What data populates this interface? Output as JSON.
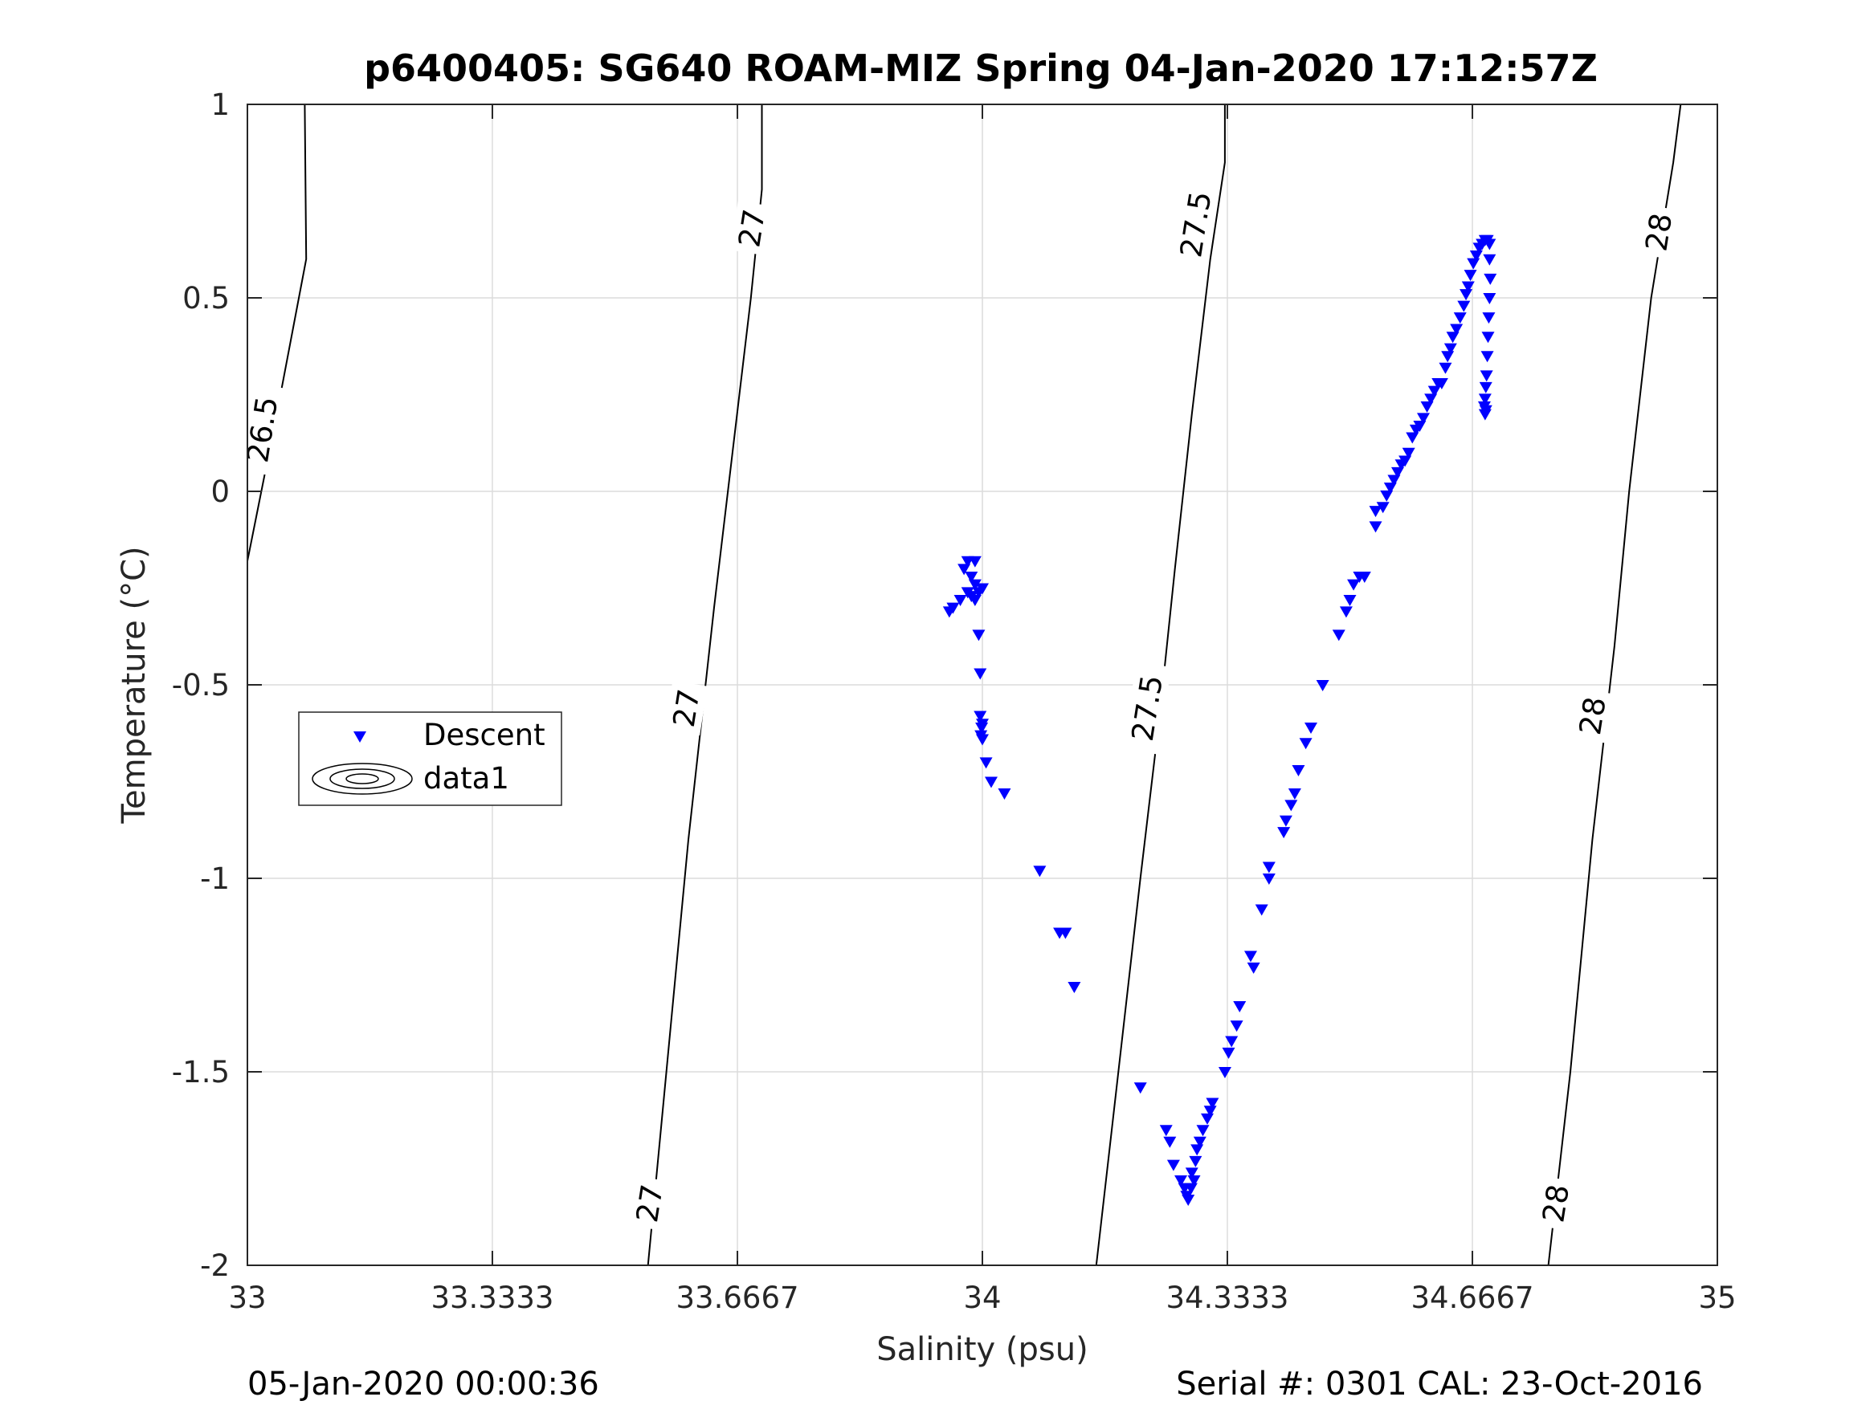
{
  "chart_data": {
    "type": "scatter",
    "title": "p6400405: SG640 ROAM-MIZ Spring 04-Jan-2020 17:12:57Z",
    "xlabel": "Salinity (psu)",
    "ylabel": "Temperature (°C)",
    "xlim": [
      33,
      35
    ],
    "ylim": [
      -2,
      1
    ],
    "xticks": [
      33,
      33.3333,
      33.6667,
      34,
      34.3333,
      34.6667,
      35
    ],
    "xtick_labels": [
      "33",
      "33.3333",
      "33.6667",
      "34",
      "34.3333",
      "34.6667",
      "35"
    ],
    "yticks": [
      -2,
      -1.5,
      -1,
      -0.5,
      0,
      0.5,
      1
    ],
    "ytick_labels": [
      "-2",
      "-1.5",
      "-1",
      "-0.5",
      "0",
      "0.5",
      "1"
    ],
    "grid": true,
    "legend_position": "left",
    "legend": [
      "Descent",
      "data1"
    ],
    "footer_left": "05-Jan-2020 00:00:36",
    "footer_right": "Serial #: 0301  CAL: 23-Oct-2016",
    "colors": {
      "descent": "#0000ff",
      "contour": "#000000",
      "grid": "#dcdcdc",
      "axis": "#262626"
    },
    "contours": [
      {
        "level": "26.5",
        "points": [
          [
            33.0,
            -0.18
          ],
          [
            33.04,
            0.2
          ],
          [
            33.08,
            0.6
          ],
          [
            33.078,
            1.0
          ]
        ]
      },
      {
        "level": "27",
        "points": [
          [
            33.545,
            -2.0
          ],
          [
            33.57,
            -1.5
          ],
          [
            33.6,
            -0.9
          ],
          [
            33.635,
            -0.3
          ],
          [
            33.66,
            0.1
          ],
          [
            33.685,
            0.5
          ],
          [
            33.7,
            0.78
          ],
          [
            33.7,
            1.0
          ]
        ]
      },
      {
        "level": "27.5",
        "points": [
          [
            34.155,
            -2.0
          ],
          [
            34.185,
            -1.5
          ],
          [
            34.215,
            -1.0
          ],
          [
            34.24,
            -0.6
          ],
          [
            34.262,
            -0.2
          ],
          [
            34.285,
            0.2
          ],
          [
            34.31,
            0.6
          ],
          [
            34.33,
            0.85
          ],
          [
            34.33,
            1.0
          ]
        ]
      },
      {
        "level": "28",
        "points": [
          [
            34.77,
            -2.0
          ],
          [
            34.8,
            -1.5
          ],
          [
            34.83,
            -0.9
          ],
          [
            34.86,
            -0.4
          ],
          [
            34.88,
            0.0
          ],
          [
            34.91,
            0.5
          ],
          [
            34.94,
            0.85
          ],
          [
            34.95,
            1.0
          ]
        ]
      }
    ],
    "contour_labels": [
      {
        "text": "26.5",
        "x": 33.02,
        "y": 0.16
      },
      {
        "text": "27",
        "x": 33.686,
        "y": 0.68
      },
      {
        "text": "27",
        "x": 33.597,
        "y": -0.56
      },
      {
        "text": "27",
        "x": 33.547,
        "y": -1.84
      },
      {
        "text": "27.5",
        "x": 34.29,
        "y": 0.69
      },
      {
        "text": "27.5",
        "x": 34.224,
        "y": -0.56
      },
      {
        "text": "28",
        "x": 34.92,
        "y": 0.67
      },
      {
        "text": "28",
        "x": 34.83,
        "y": -0.58
      },
      {
        "text": "28",
        "x": 34.78,
        "y": -1.84
      }
    ],
    "series": [
      {
        "name": "Descent",
        "marker": "triangle-down",
        "points": [
          [
            33.98,
            -0.18
          ],
          [
            33.99,
            -0.18
          ],
          [
            33.975,
            -0.2
          ],
          [
            33.985,
            -0.22
          ],
          [
            33.99,
            -0.24
          ],
          [
            33.98,
            -0.26
          ],
          [
            33.97,
            -0.28
          ],
          [
            33.99,
            -0.28
          ],
          [
            34.0,
            -0.25
          ],
          [
            33.995,
            -0.26
          ],
          [
            33.985,
            -0.27
          ],
          [
            33.96,
            -0.3
          ],
          [
            33.955,
            -0.31
          ],
          [
            33.995,
            -0.37
          ],
          [
            33.997,
            -0.47
          ],
          [
            33.997,
            -0.58
          ],
          [
            34.0,
            -0.6
          ],
          [
            33.999,
            -0.61
          ],
          [
            33.998,
            -0.63
          ],
          [
            34.0,
            -0.64
          ],
          [
            34.005,
            -0.7
          ],
          [
            34.012,
            -0.75
          ],
          [
            34.03,
            -0.78
          ],
          [
            34.078,
            -0.98
          ],
          [
            34.105,
            -1.14
          ],
          [
            34.113,
            -1.14
          ],
          [
            34.125,
            -1.28
          ],
          [
            34.215,
            -1.54
          ],
          [
            34.25,
            -1.65
          ],
          [
            34.255,
            -1.68
          ],
          [
            34.26,
            -1.74
          ],
          [
            34.27,
            -1.78
          ],
          [
            34.275,
            -1.8
          ],
          [
            34.278,
            -1.82
          ],
          [
            34.28,
            -1.83
          ],
          [
            34.284,
            -1.8
          ],
          [
            34.288,
            -1.78
          ],
          [
            34.285,
            -1.76
          ],
          [
            34.29,
            -1.73
          ],
          [
            34.292,
            -1.7
          ],
          [
            34.296,
            -1.68
          ],
          [
            34.3,
            -1.65
          ],
          [
            34.306,
            -1.62
          ],
          [
            34.31,
            -1.6
          ],
          [
            34.313,
            -1.58
          ],
          [
            34.33,
            -1.5
          ],
          [
            34.335,
            -1.45
          ],
          [
            34.339,
            -1.42
          ],
          [
            34.346,
            -1.38
          ],
          [
            34.35,
            -1.33
          ],
          [
            34.365,
            -1.2
          ],
          [
            34.369,
            -1.23
          ],
          [
            34.38,
            -1.08
          ],
          [
            34.39,
            -1.0
          ],
          [
            34.39,
            -0.97
          ],
          [
            34.41,
            -0.88
          ],
          [
            34.413,
            -0.85
          ],
          [
            34.42,
            -0.81
          ],
          [
            34.425,
            -0.78
          ],
          [
            34.43,
            -0.72
          ],
          [
            34.44,
            -0.65
          ],
          [
            34.447,
            -0.61
          ],
          [
            34.463,
            -0.5
          ],
          [
            34.485,
            -0.37
          ],
          [
            34.495,
            -0.31
          ],
          [
            34.5,
            -0.28
          ],
          [
            34.505,
            -0.24
          ],
          [
            34.513,
            -0.22
          ],
          [
            34.52,
            -0.22
          ],
          [
            34.535,
            -0.09
          ],
          [
            34.535,
            -0.05
          ],
          [
            34.545,
            -0.04
          ],
          [
            34.55,
            -0.01
          ],
          [
            34.555,
            0.01
          ],
          [
            34.56,
            0.03
          ],
          [
            34.565,
            0.05
          ],
          [
            34.57,
            0.07
          ],
          [
            34.575,
            0.08
          ],
          [
            34.58,
            0.1
          ],
          [
            34.585,
            0.14
          ],
          [
            34.59,
            0.16
          ],
          [
            34.595,
            0.17
          ],
          [
            34.6,
            0.19
          ],
          [
            34.605,
            0.22
          ],
          [
            34.61,
            0.24
          ],
          [
            34.615,
            0.26
          ],
          [
            34.62,
            0.28
          ],
          [
            34.625,
            0.28
          ],
          [
            34.63,
            0.32
          ],
          [
            34.633,
            0.35
          ],
          [
            34.637,
            0.37
          ],
          [
            34.64,
            0.4
          ],
          [
            34.645,
            0.42
          ],
          [
            34.65,
            0.45
          ],
          [
            34.655,
            0.48
          ],
          [
            34.658,
            0.51
          ],
          [
            34.661,
            0.53
          ],
          [
            34.664,
            0.56
          ],
          [
            34.668,
            0.59
          ],
          [
            34.672,
            0.61
          ],
          [
            34.676,
            0.63
          ],
          [
            34.68,
            0.64
          ],
          [
            34.684,
            0.65
          ],
          [
            34.687,
            0.65
          ],
          [
            34.69,
            0.64
          ],
          [
            34.69,
            0.6
          ],
          [
            34.691,
            0.55
          ],
          [
            34.69,
            0.5
          ],
          [
            34.689,
            0.45
          ],
          [
            34.688,
            0.4
          ],
          [
            34.687,
            0.35
          ],
          [
            34.686,
            0.3
          ],
          [
            34.685,
            0.27
          ],
          [
            34.684,
            0.24
          ],
          [
            34.683,
            0.22
          ],
          [
            34.685,
            0.21
          ],
          [
            34.684,
            0.2
          ]
        ]
      }
    ]
  }
}
